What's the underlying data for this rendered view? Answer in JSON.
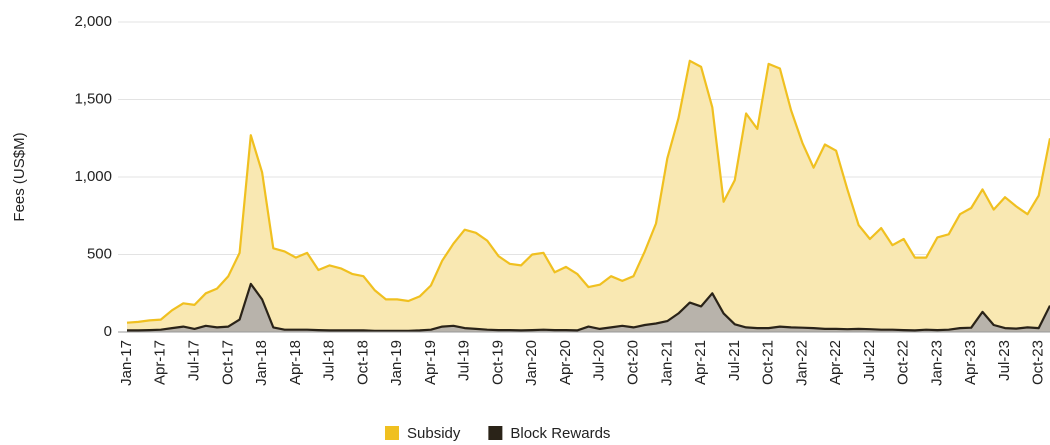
{
  "chart_data": {
    "type": "area",
    "y_label": "Fees (US$M)",
    "categories": [
      "Jan-17",
      null,
      null,
      "Apr-17",
      null,
      null,
      "Jul-17",
      null,
      null,
      "Oct-17",
      null,
      null,
      "Jan-18",
      null,
      null,
      "Apr-18",
      null,
      null,
      "Jul-18",
      null,
      null,
      "Oct-18",
      null,
      null,
      "Jan-19",
      null,
      null,
      "Apr-19",
      null,
      null,
      "Jul-19",
      null,
      null,
      "Oct-19",
      null,
      null,
      "Jan-20",
      null,
      null,
      "Apr-20",
      null,
      null,
      "Jul-20",
      null,
      null,
      "Oct-20",
      null,
      null,
      "Jan-21",
      null,
      null,
      "Apr-21",
      null,
      null,
      "Jul-21",
      null,
      null,
      "Oct-21",
      null,
      null,
      "Jan-22",
      null,
      null,
      "Apr-22",
      null,
      null,
      "Jul-22",
      null,
      null,
      "Oct-22",
      null,
      null,
      "Jan-23",
      null,
      null,
      "Apr-23",
      null,
      null,
      "Jul-23",
      null,
      null,
      "Oct-23",
      null
    ],
    "series": [
      {
        "name": "Subsidy",
        "color": "#f0c020",
        "fill": "#f9e8b2",
        "values": [
          60,
          65,
          75,
          80,
          140,
          185,
          175,
          250,
          280,
          360,
          510,
          1270,
          1030,
          540,
          520,
          480,
          510,
          400,
          430,
          410,
          375,
          360,
          270,
          210,
          210,
          200,
          230,
          300,
          460,
          570,
          660,
          640,
          590,
          490,
          440,
          430,
          500,
          510,
          385,
          420,
          375,
          290,
          305,
          360,
          330,
          360,
          520,
          700,
          1120,
          1380,
          1750,
          1710,
          1450,
          840,
          980,
          1410,
          1310,
          1730,
          1700,
          1430,
          1220,
          1060,
          1210,
          1170,
          920,
          690,
          600,
          670,
          560,
          600,
          480,
          480,
          610,
          630,
          760,
          800,
          920,
          790,
          870,
          810,
          760,
          880,
          1250
        ]
      },
      {
        "name": "Block Rewards",
        "color": "#2a2318",
        "fill": "#b8b3ab",
        "values": [
          10,
          10,
          12,
          15,
          25,
          35,
          20,
          40,
          30,
          35,
          80,
          310,
          210,
          30,
          15,
          15,
          15,
          12,
          10,
          10,
          10,
          10,
          8,
          8,
          8,
          8,
          10,
          15,
          35,
          40,
          25,
          20,
          15,
          12,
          12,
          10,
          12,
          15,
          12,
          12,
          10,
          35,
          20,
          30,
          40,
          30,
          45,
          55,
          70,
          120,
          190,
          165,
          250,
          120,
          50,
          30,
          25,
          25,
          35,
          30,
          28,
          25,
          20,
          20,
          18,
          20,
          18,
          15,
          15,
          12,
          10,
          15,
          12,
          15,
          25,
          28,
          130,
          45,
          25,
          22,
          30,
          25,
          170
        ]
      }
    ],
    "ylim": [
      0,
      2000
    ],
    "yticks": [
      0,
      500,
      {
        "value": 1000,
        "label": "1,000"
      },
      {
        "value": 1500,
        "label": "1,500"
      },
      {
        "value": 2000,
        "label": "2,000"
      }
    ],
    "grid": true,
    "legend": "bottom"
  }
}
